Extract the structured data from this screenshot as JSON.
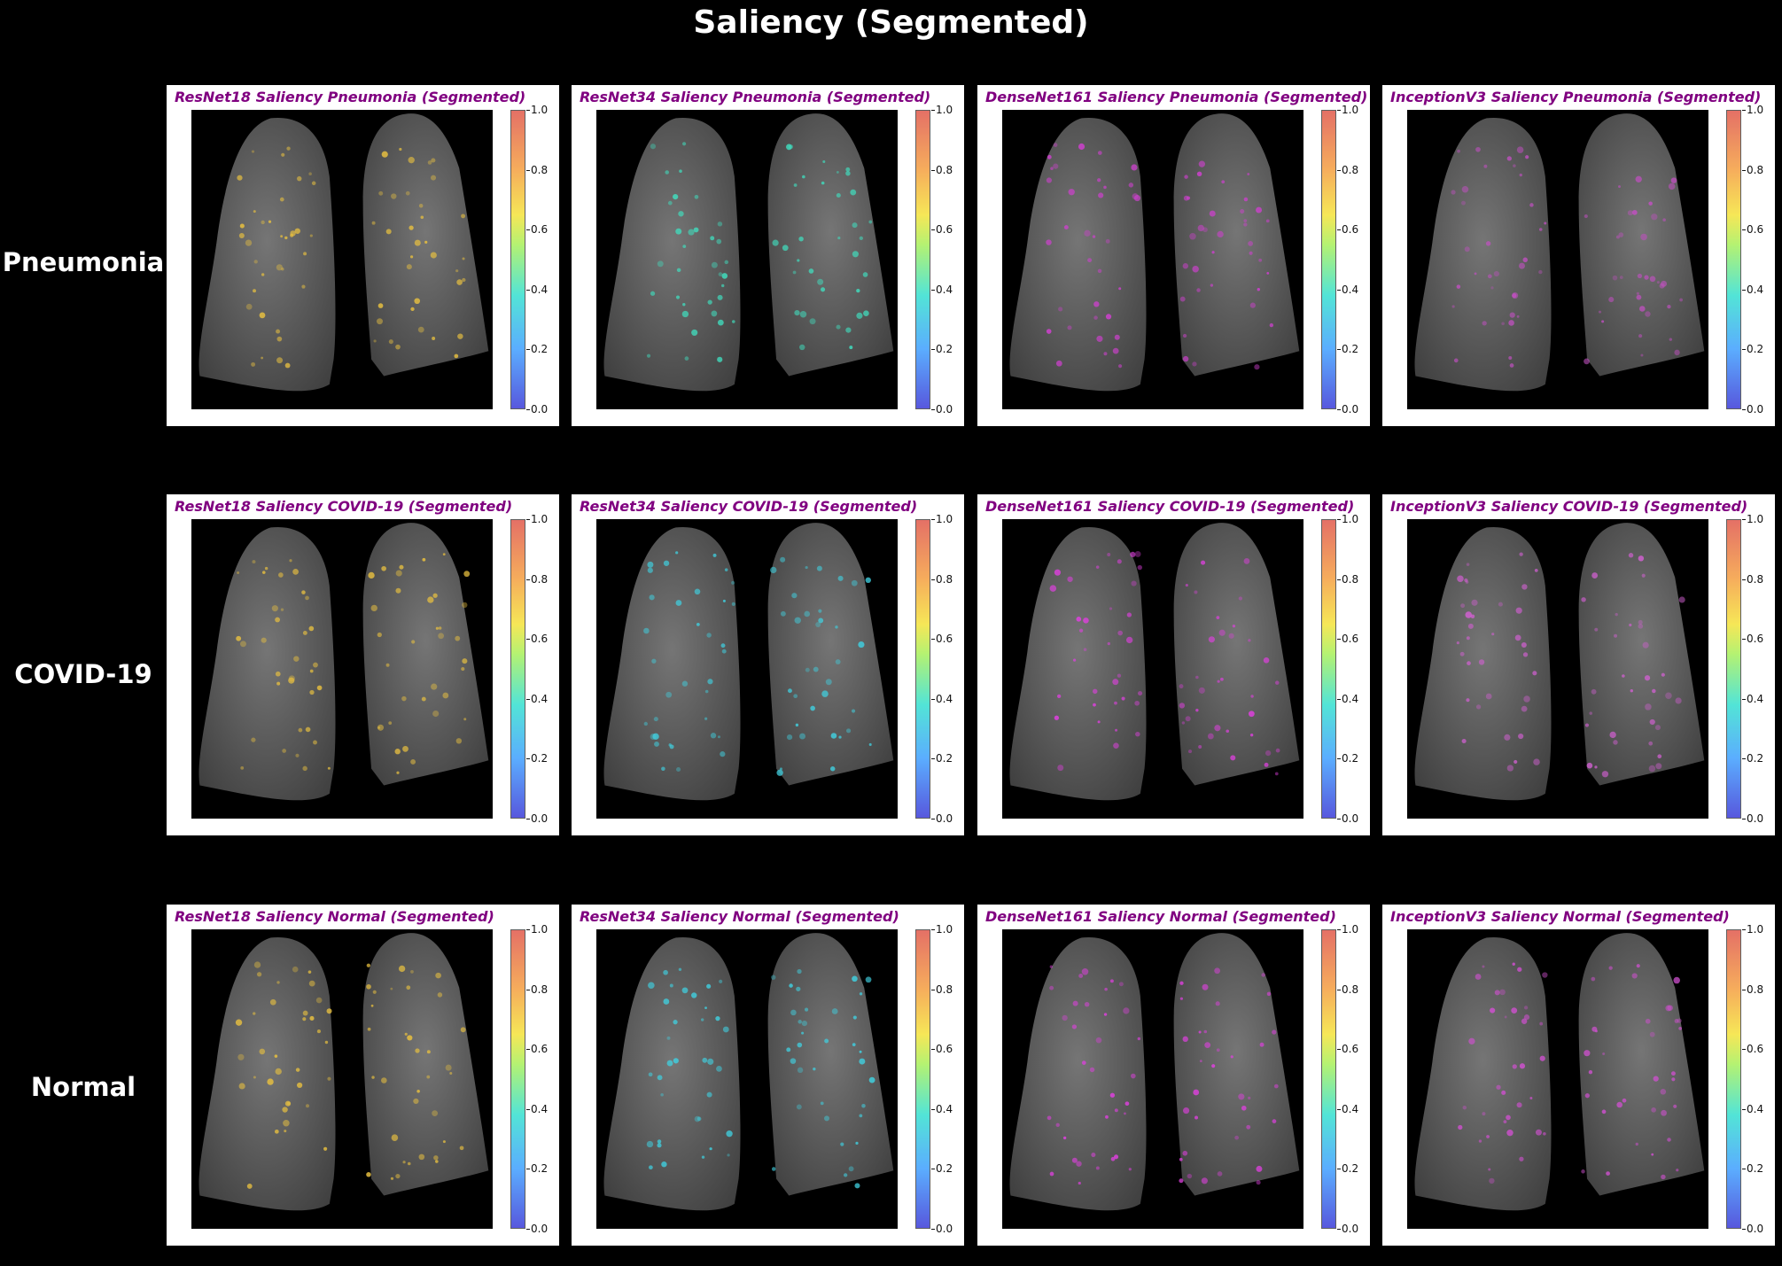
{
  "title": "Saliency (Segmented)",
  "rows": [
    {
      "label": "Pneumonia",
      "panels": [
        {
          "title": "ResNet18 Saliency Pneumonia (Segmented)",
          "dot_color": "#e8c040"
        },
        {
          "title": "ResNet34 Saliency Pneumonia (Segmented)",
          "dot_color": "#40e0c0"
        },
        {
          "title": "DenseNet161 Saliency Pneumonia (Segmented)",
          "dot_color": "#d040d0"
        },
        {
          "title": "InceptionV3 Saliency Pneumonia (Segmented)",
          "dot_color": "#c050c0"
        }
      ]
    },
    {
      "label": "COVID-19",
      "panels": [
        {
          "title": "ResNet18 Saliency COVID-19 (Segmented)",
          "dot_color": "#e8c040"
        },
        {
          "title": "ResNet34 Saliency COVID-19 (Segmented)",
          "dot_color": "#40d0e0"
        },
        {
          "title": "DenseNet161 Saliency COVID-19 (Segmented)",
          "dot_color": "#e040e0"
        },
        {
          "title": "InceptionV3 Saliency COVID-19 (Segmented)",
          "dot_color": "#d060d0"
        }
      ]
    },
    {
      "label": "Normal",
      "panels": [
        {
          "title": "ResNet18 Saliency Normal (Segmented)",
          "dot_color": "#e8c040"
        },
        {
          "title": "ResNet34 Saliency Normal (Segmented)",
          "dot_color": "#40d0e0"
        },
        {
          "title": "DenseNet161 Saliency Normal (Segmented)",
          "dot_color": "#e040e0"
        },
        {
          "title": "InceptionV3 Saliency Normal (Segmented)",
          "dot_color": "#d050d0"
        }
      ]
    }
  ],
  "colorbar_ticks": [
    "0.0",
    "0.2",
    "0.4",
    "0.6",
    "0.8",
    "1.0"
  ]
}
